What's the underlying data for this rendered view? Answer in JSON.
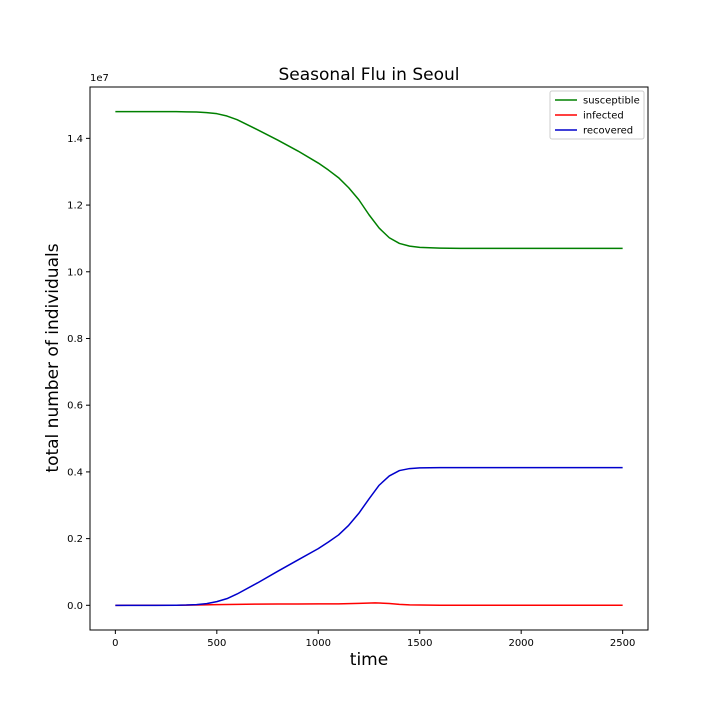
{
  "chart_data": {
    "type": "line",
    "title": "Seasonal Flu in Seoul",
    "xlabel": "time",
    "ylabel": "total number of individuals",
    "y_offset_text": "1e7",
    "xlim": [
      -125,
      2625
    ],
    "ylim": [
      -740000,
      15540000
    ],
    "x_ticks": [
      0,
      500,
      1000,
      1500,
      2000,
      2500
    ],
    "x_tick_labels": [
      "0",
      "500",
      "1000",
      "1500",
      "2000",
      "2500"
    ],
    "y_ticks": [
      0,
      2000000,
      4000000,
      6000000,
      8000000,
      10000000,
      12000000,
      14000000
    ],
    "y_tick_labels": [
      "0.0",
      "0.2",
      "0.4",
      "0.6",
      "0.8",
      "1.0",
      "1.2",
      "1.4"
    ],
    "grid": false,
    "legend_position": "top-right",
    "series": [
      {
        "name": "susceptible",
        "color": "#008000",
        "x": [
          0,
          100,
          200,
          300,
          350,
          400,
          450,
          500,
          550,
          600,
          700,
          800,
          900,
          1000,
          1050,
          1100,
          1150,
          1200,
          1250,
          1300,
          1350,
          1400,
          1450,
          1500,
          1600,
          1700,
          1800,
          2000,
          2200,
          2500
        ],
        "y": [
          14800000,
          14800000,
          14800000,
          14800000,
          14795000,
          14790000,
          14770000,
          14740000,
          14670000,
          14560000,
          14260000,
          13950000,
          13620000,
          13260000,
          13050000,
          12820000,
          12520000,
          12160000,
          11710000,
          11310000,
          11020000,
          10850000,
          10770000,
          10730000,
          10710000,
          10700000,
          10700000,
          10700000,
          10700000,
          10700000
        ]
      },
      {
        "name": "infected",
        "color": "#ff0000",
        "x": [
          0,
          300,
          400,
          500,
          600,
          700,
          800,
          900,
          1000,
          1100,
          1200,
          1280,
          1350,
          1400,
          1450,
          1500,
          1600,
          1800,
          2000,
          2500
        ],
        "y": [
          0,
          2000,
          8000,
          20000,
          30000,
          35000,
          38000,
          40000,
          42000,
          45000,
          60000,
          75000,
          55000,
          30000,
          15000,
          8000,
          3000,
          1000,
          500,
          300
        ]
      },
      {
        "name": "recovered",
        "color": "#0000cc",
        "x": [
          0,
          100,
          200,
          300,
          350,
          400,
          450,
          500,
          550,
          600,
          700,
          800,
          900,
          1000,
          1050,
          1100,
          1150,
          1200,
          1250,
          1300,
          1350,
          1400,
          1450,
          1500,
          1600,
          1700,
          1800,
          2000,
          2200,
          2500
        ],
        "y": [
          0,
          0,
          0,
          3000,
          8000,
          20000,
          50000,
          110000,
          200000,
          340000,
          670000,
          1020000,
          1360000,
          1700000,
          1900000,
          2110000,
          2400000,
          2760000,
          3190000,
          3600000,
          3880000,
          4040000,
          4100000,
          4120000,
          4130000,
          4130000,
          4130000,
          4130000,
          4130000,
          4130000
        ]
      }
    ]
  }
}
